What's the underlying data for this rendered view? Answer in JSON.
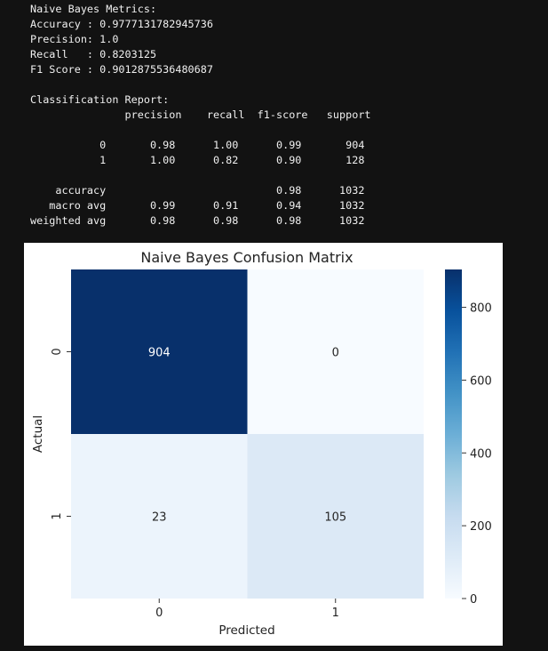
{
  "console": {
    "lines": [
      "Naive Bayes Metrics:",
      "Accuracy : 0.9777131782945736",
      "Precision: 1.0",
      "Recall   : 0.8203125",
      "F1 Score : 0.9012875536480687",
      "",
      "Classification Report:",
      "               precision    recall  f1-score   support",
      "",
      "           0       0.98      1.00      0.99       904",
      "           1       1.00      0.82      0.90       128",
      "",
      "    accuracy                           0.98      1032",
      "   macro avg       0.99      0.91      0.94      1032",
      "weighted avg       0.98      0.98      0.98      1032"
    ]
  },
  "chart_data": {
    "type": "heatmap",
    "title": "Naive Bayes Confusion Matrix",
    "xlabel": "Predicted",
    "ylabel": "Actual",
    "x_categories": [
      "0",
      "1"
    ],
    "y_categories": [
      "0",
      "1"
    ],
    "values": [
      [
        904,
        0
      ],
      [
        23,
        105
      ]
    ],
    "colormap": "Blues",
    "colorbar": {
      "range": [
        0,
        904
      ],
      "ticks": [
        "0",
        "200",
        "400",
        "600",
        "800"
      ],
      "tick_values": [
        0,
        200,
        400,
        600,
        800
      ]
    },
    "cell_colors": [
      [
        "#08306b",
        "#f7fbff"
      ],
      [
        "#ecf4fc",
        "#dce9f6"
      ]
    ]
  }
}
